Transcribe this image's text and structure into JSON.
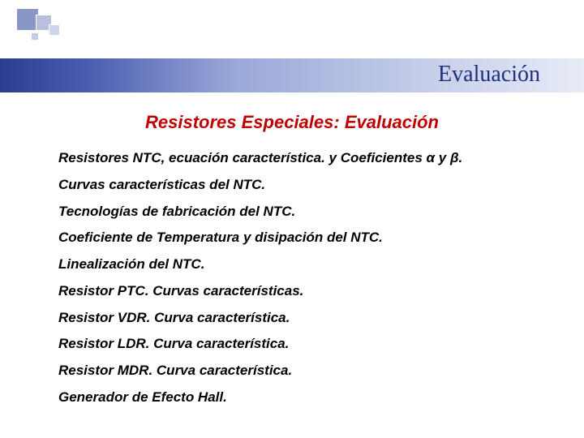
{
  "colors": {
    "title_color": "#1f2f7a",
    "section_color": "#c00000",
    "body_color": "#000000",
    "band_gradient_start": "#2a3d8f",
    "band_gradient_end": "#e8ecf7",
    "deco_colors": [
      "#8a96c7",
      "#b8c0de",
      "#d0d6ea",
      "#c4cbe4"
    ],
    "background": "#ffffff"
  },
  "typography": {
    "title_fontsize": 28,
    "section_fontsize": 22,
    "body_fontsize": 17,
    "title_family": "Georgia, Times New Roman, serif",
    "body_family": "Arial, Helvetica, sans-serif",
    "body_weight": "bold",
    "body_style": "italic"
  },
  "slide_title": "Evaluación",
  "section_title": "Resistores Especiales: Evaluación",
  "items": [
    "Resistores NTC, ecuación característica. y Coeficientes α y β.",
    "Curvas características  del NTC.",
    "Tecnologías de fabricación del NTC.",
    "Coeficiente de Temperatura y disipación del NTC.",
    "Linealización del NTC.",
    "Resistor  PTC.  Curvas características.",
    "Resistor VDR.  Curva  característica.",
    "Resistor  LDR.   Curva característica.",
    "Resistor MDR.  Curva característica.",
    "Generador de Efecto Hall."
  ]
}
